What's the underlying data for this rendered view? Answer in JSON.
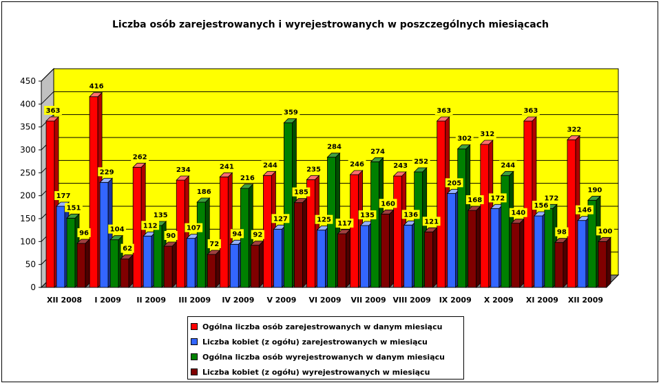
{
  "chart_data": {
    "type": "bar",
    "title": "Liczba osób zarejestrowanych i wyrejestrowanych w poszczególnych miesiącach",
    "categories": [
      "XII 2008",
      "I 2009",
      "II 2009",
      "III 2009",
      "IV 2009",
      "V 2009",
      "VI 2009",
      "VII 2009",
      "VIII 2009",
      "IX 2009",
      "X 2009",
      "XI 2009",
      "XII 2009"
    ],
    "series": [
      {
        "name": "Ogólna liczba osób zarejestrowanych w danym miesiącu",
        "color": "#FF0000",
        "side": "#B00000",
        "top": "#FF7070",
        "values": [
          363,
          416,
          262,
          234,
          241,
          244,
          235,
          246,
          243,
          363,
          312,
          363,
          322
        ]
      },
      {
        "name": "Liczba kobiet (z ogółu) zarejestrowanych w miesiącu",
        "color": "#3366FF",
        "side": "#1A3399",
        "top": "#99B3FF",
        "values": [
          177,
          229,
          112,
          107,
          94,
          127,
          125,
          135,
          136,
          205,
          172,
          156,
          146
        ]
      },
      {
        "name": "Ogólna liczba osób wyrejestrowanych w danym miesiącu",
        "color": "#008000",
        "side": "#004D00",
        "top": "#40A040",
        "values": [
          151,
          104,
          135,
          186,
          216,
          359,
          284,
          274,
          252,
          302,
          244,
          172,
          190
        ]
      },
      {
        "name": "Liczba kobiet (z ogółu) wyrejestrowanych w miesiącu",
        "color": "#800000",
        "side": "#4D0000",
        "top": "#A04040",
        "values": [
          96,
          62,
          90,
          72,
          92,
          185,
          117,
          160,
          121,
          168,
          140,
          98,
          100
        ]
      }
    ],
    "ylim": [
      0,
      450
    ],
    "yticks": [
      0,
      50,
      100,
      150,
      200,
      250,
      300,
      350,
      400,
      450
    ],
    "grid": true,
    "wall_color": "#FFFF00",
    "floor_color": "#808080",
    "legend_position": "bottom"
  }
}
